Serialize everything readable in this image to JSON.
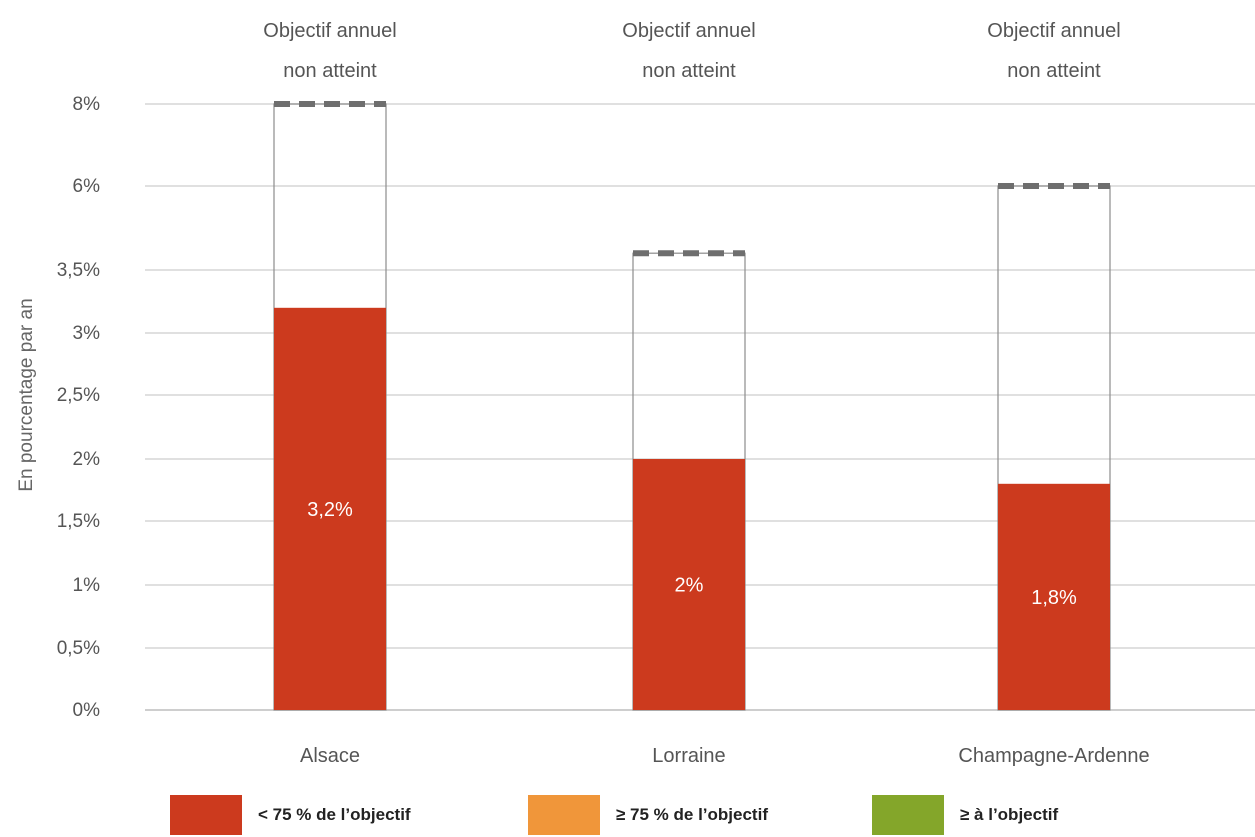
{
  "chart_data": {
    "type": "bar",
    "ylabel": "En pourcentage par an",
    "y_tick_labels": [
      "0%",
      "0,5%",
      "1%",
      "1,5%",
      "2%",
      "2,5%",
      "3%",
      "3,5%",
      "6%",
      "8%"
    ],
    "y_tick_values": [
      0,
      0.5,
      1,
      1.5,
      2,
      2.5,
      3,
      3.5,
      6,
      8
    ],
    "y_scale": "non-linear (upper ticks compressed)",
    "grid": true,
    "categories": [
      "Alsace",
      "Lorraine",
      "Champagne-Ardenne"
    ],
    "series": [
      {
        "values": [
          3.2,
          2,
          1.8
        ],
        "labels": [
          "3,2%",
          "2%",
          "1,8%"
        ],
        "color": "#cc3a1e"
      }
    ],
    "annual_objective": [
      8,
      4,
      6
    ],
    "objective_style": "dashed top line, outlined box",
    "annotations": [
      "Objectif annuel\nnon atteint",
      "Objectif annuel\nnon atteint",
      "Objectif annuel\nnon atteint"
    ],
    "legend": [
      {
        "label": "< 75 % de l’objectif",
        "color": "#cc3a1e"
      },
      {
        "label": "≥ 75 % de l’objectif",
        "color": "#f0963a"
      },
      {
        "label": "≥  à l’objectif",
        "color": "#84a62a"
      }
    ],
    "legend_position": "bottom"
  }
}
